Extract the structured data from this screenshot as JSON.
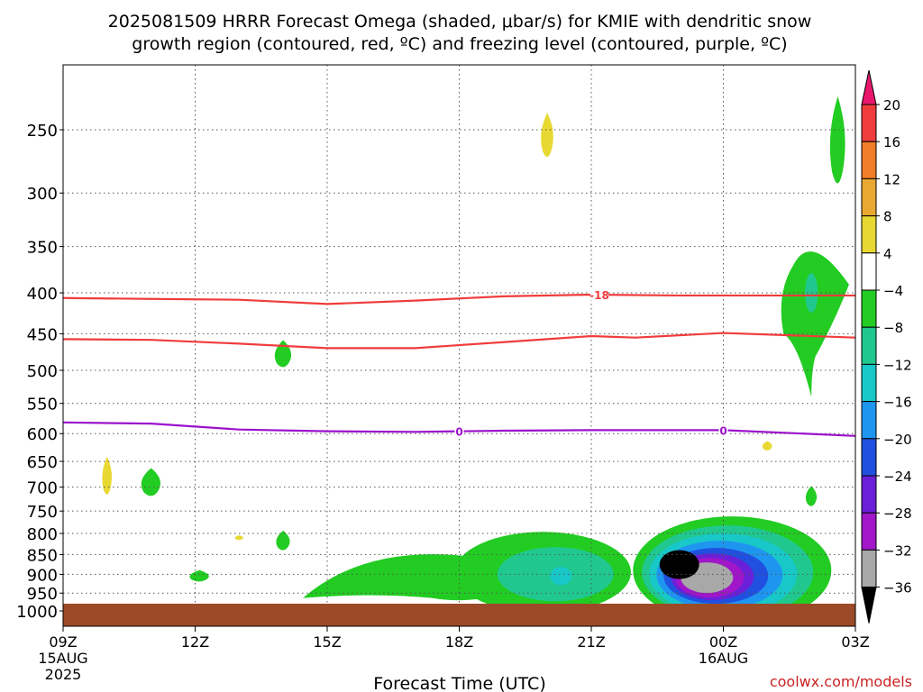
{
  "title_line1": "2025081509 HRRR Forecast Omega (shaded, μbar/s) for KMIE with dendritic snow",
  "title_line2": "growth region (contoured, red, ºC) and freezing level (contoured, purple, ºC)",
  "xlabel": "Forecast Time (UTC)",
  "credit": "coolwx.com/models",
  "chart_data": {
    "type": "contour",
    "x_axis": {
      "unit": "hours after 2025-08-15 09Z",
      "range": [
        0,
        18
      ],
      "ticks": [
        {
          "h": 0,
          "label": "09Z",
          "sub1": "15AUG",
          "sub2": "2025"
        },
        {
          "h": 3,
          "label": "12Z"
        },
        {
          "h": 6,
          "label": "15Z"
        },
        {
          "h": 9,
          "label": "18Z"
        },
        {
          "h": 12,
          "label": "21Z"
        },
        {
          "h": 15,
          "label": "00Z",
          "sub1": "16AUG"
        },
        {
          "h": 18,
          "label": "03Z"
        }
      ]
    },
    "y_axis": {
      "unit": "hPa",
      "reversed": true,
      "ticks": [
        250,
        300,
        350,
        400,
        450,
        500,
        550,
        600,
        650,
        700,
        750,
        800,
        850,
        900,
        950,
        1000
      ]
    },
    "grid": true,
    "colorbar": {
      "labels": [
        "20",
        "16",
        "12",
        "8",
        "4",
        "−4",
        "−8",
        "−12",
        "−16",
        "−20",
        "−24",
        "−28",
        "−32",
        "−36"
      ],
      "colors": [
        "#e8176b",
        "#f03c3c",
        "#f07d28",
        "#e8a832",
        "#e8d832",
        "#ffffff",
        "#22cc22",
        "#20c890",
        "#18c8c8",
        "#1e96f0",
        "#2050e0",
        "#6a20d8",
        "#a016c8",
        "#a8a8a8",
        "#000000"
      ]
    },
    "dgz_contours": [
      {
        "label": "-18",
        "label_at_h": 12.0,
        "points": [
          [
            0,
            406
          ],
          [
            2,
            407
          ],
          [
            4,
            408
          ],
          [
            6,
            413
          ],
          [
            8,
            409
          ],
          [
            10,
            404
          ],
          [
            12,
            402
          ],
          [
            14,
            403
          ],
          [
            16,
            403
          ],
          [
            18,
            403
          ]
        ]
      },
      {
        "points": [
          [
            0,
            457
          ],
          [
            2,
            458
          ],
          [
            4,
            463
          ],
          [
            6,
            469
          ],
          [
            8,
            469
          ],
          [
            10,
            461
          ],
          [
            12,
            453
          ],
          [
            13,
            455
          ],
          [
            15,
            449
          ],
          [
            18,
            455
          ]
        ]
      }
    ],
    "freezing_level": {
      "label": "0",
      "label_at_h": [
        9.0,
        15.0
      ],
      "points": [
        [
          0,
          581
        ],
        [
          2,
          583
        ],
        [
          4,
          593
        ],
        [
          6,
          596
        ],
        [
          8,
          597
        ],
        [
          10,
          595
        ],
        [
          12,
          594
        ],
        [
          15,
          594
        ],
        [
          18,
          604
        ]
      ]
    },
    "omega_features": [
      {
        "value_class": "+4",
        "color": "#e8d832",
        "h": 1.0,
        "p": 680,
        "rh": 0.14,
        "rp": 80
      },
      {
        "value_class": "+4",
        "color": "#e8d832",
        "h": 4.0,
        "p": 810,
        "rh": 0.12,
        "rp": 12
      },
      {
        "value_class": "+4",
        "color": "#e8d832",
        "h": 11.0,
        "p": 255,
        "rh": 0.18,
        "rp": 35
      },
      {
        "value_class": "+4",
        "color": "#e8d832",
        "h": 16.0,
        "p": 622,
        "rh": 0.14,
        "rp": 18
      },
      {
        "value_class": "-4",
        "color": "#22cc22",
        "h": 2.0,
        "p": 692,
        "rh": 0.28,
        "rp": 60
      },
      {
        "value_class": "-4",
        "color": "#22cc22",
        "h": 3.1,
        "p": 905,
        "rh": 0.28,
        "rp": 32
      },
      {
        "value_class": "-4",
        "color": "#22cc22",
        "h": 5.0,
        "p": 478,
        "rh": 0.24,
        "rp": 40
      },
      {
        "value_class": "-4",
        "color": "#22cc22",
        "h": 5.0,
        "p": 818,
        "rh": 0.2,
        "rp": 50
      },
      {
        "value_class": "-4",
        "color": "#22cc22",
        "h": 17.0,
        "p": 720,
        "rh": 0.16,
        "rp": 45
      },
      {
        "value_class": "-4",
        "color": "#22cc22",
        "h": 17.6,
        "p": 260,
        "rh": 0.22,
        "rp": 70
      }
    ],
    "green_wedge": {
      "value_class": "-4",
      "h": 7.7,
      "p": 910,
      "rh": 2.25,
      "rp": 50
    },
    "tall_cell": {
      "h": 17.0,
      "p_top": 352,
      "p_bottom": 540,
      "rh": 0.9,
      "core": {
        "value_class": "-8",
        "p": 400
      }
    },
    "cell_20z": {
      "h": 10.9,
      "p": 895,
      "rh": 2.0,
      "rp": 80,
      "core_class": "-8"
    },
    "strong_cell": {
      "h": 15.2,
      "p": 890,
      "min_class": "-36",
      "min_at": {
        "h": 14.0,
        "p": 875
      }
    }
  }
}
